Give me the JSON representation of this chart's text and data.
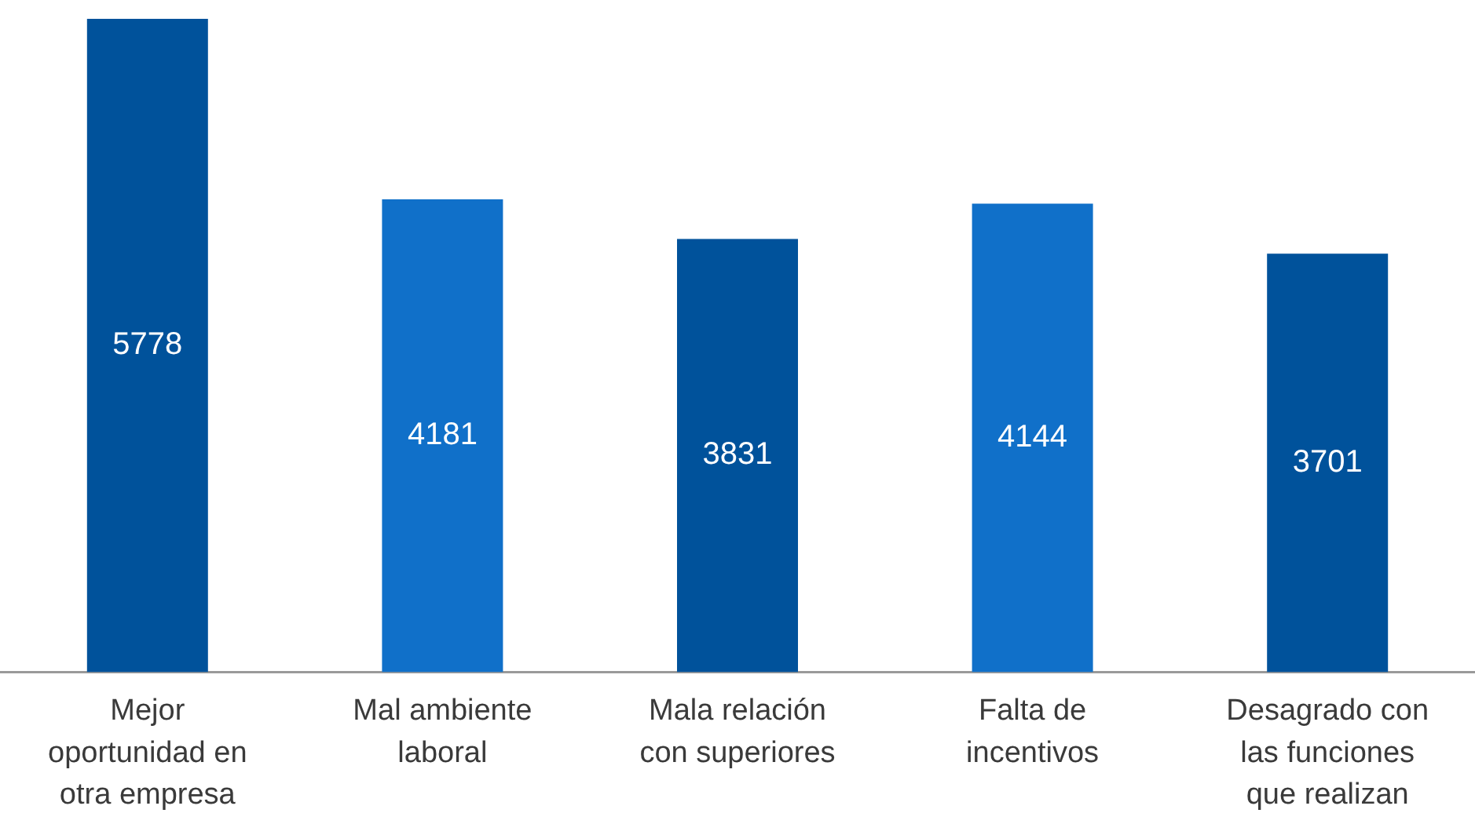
{
  "chart_data": {
    "type": "bar",
    "categories": [
      "Mejor oportunidad en otra empresa",
      "Mal ambiente laboral",
      "Mala relación con superiores",
      "Falta de incentivos",
      "Desagrado con las funciones que realizan"
    ],
    "values": [
      5778,
      4181,
      3831,
      4144,
      3701
    ],
    "colors": [
      "#00529b",
      "#1070c9",
      "#00529b",
      "#1070c9",
      "#00529b"
    ],
    "data_labels": true,
    "tick_labels": "x",
    "grid": false,
    "legend": false
  }
}
